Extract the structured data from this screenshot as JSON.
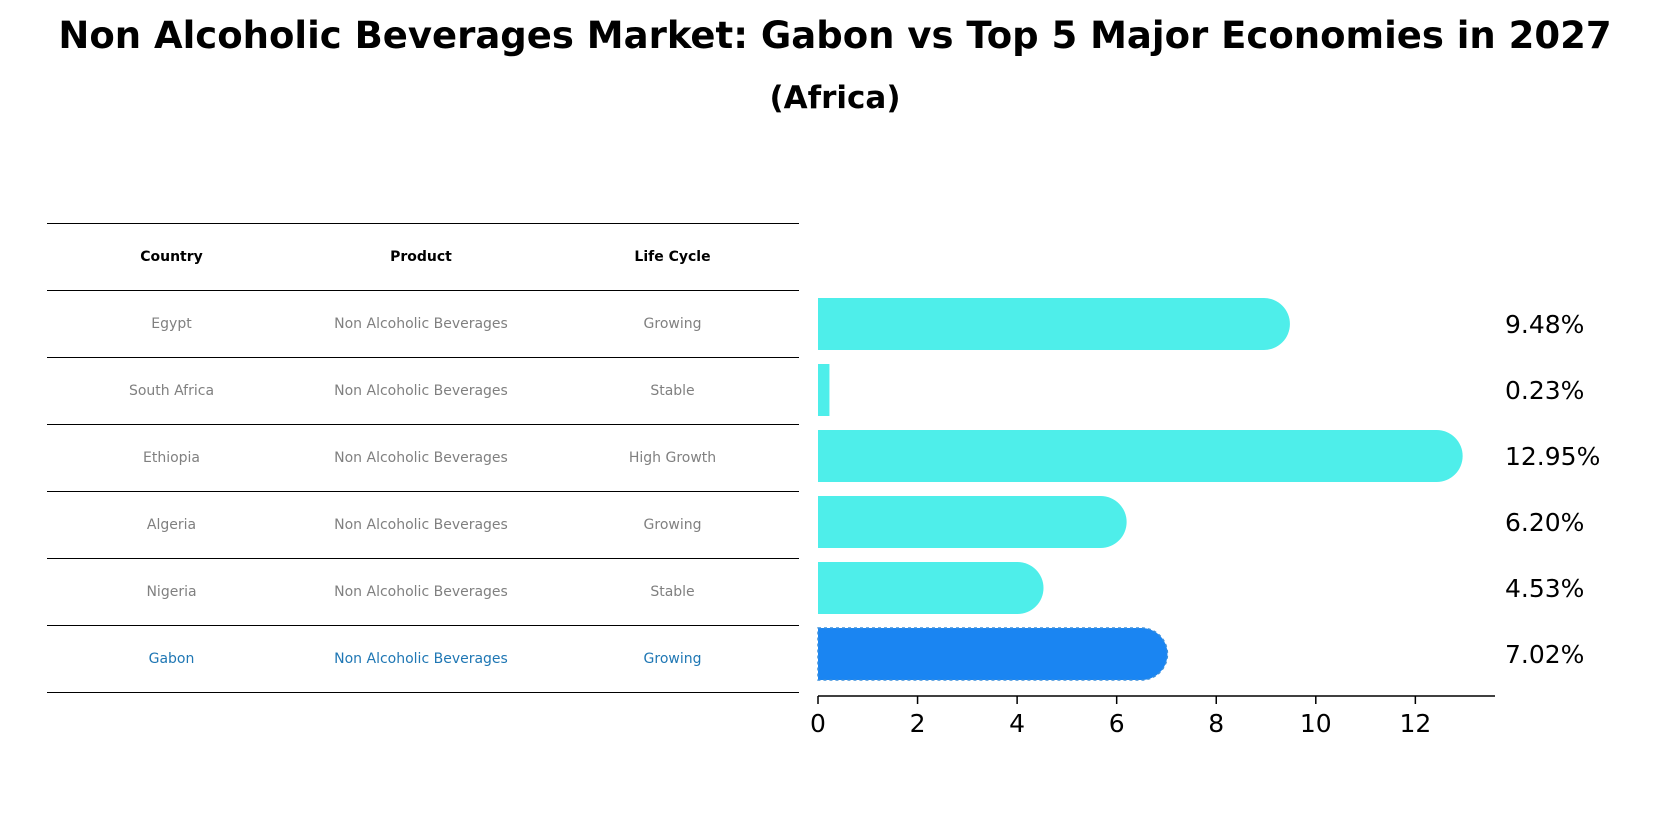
{
  "title": "Non Alcoholic Beverages Market: Gabon vs Top 5 Major Economies in 2027",
  "subtitle": "(Africa)",
  "table": {
    "headers": [
      "Country",
      "Product",
      "Life Cycle"
    ],
    "rows": [
      [
        "Egypt",
        "Non Alcoholic Beverages",
        "Growing"
      ],
      [
        "South Africa",
        "Non Alcoholic Beverages",
        "Stable"
      ],
      [
        "Ethiopia",
        "Non Alcoholic Beverages",
        "High Growth"
      ],
      [
        "Algeria",
        "Non Alcoholic Beverages",
        "Growing"
      ],
      [
        "Nigeria",
        "Non Alcoholic Beverages",
        "Stable"
      ],
      [
        "Gabon",
        "Non Alcoholic Beverages",
        "Growing"
      ]
    ],
    "highlight_row": 5
  },
  "chart_data": {
    "type": "bar",
    "orientation": "horizontal",
    "categories": [
      "Egypt",
      "South Africa",
      "Ethiopia",
      "Algeria",
      "Nigeria",
      "Gabon"
    ],
    "values": [
      9.48,
      0.23,
      12.95,
      6.2,
      4.53,
      7.02
    ],
    "data_labels": [
      "9.48%",
      "0.23%",
      "12.95%",
      "6.20%",
      "4.53%",
      "7.02%"
    ],
    "xticks": [
      0,
      2,
      4,
      6,
      8,
      10,
      12
    ],
    "xlim": [
      0,
      13.6
    ],
    "grid": false,
    "colors": {
      "default": "#4EEEEA",
      "highlight": "#1A85F2"
    },
    "highlight_index": 5
  }
}
